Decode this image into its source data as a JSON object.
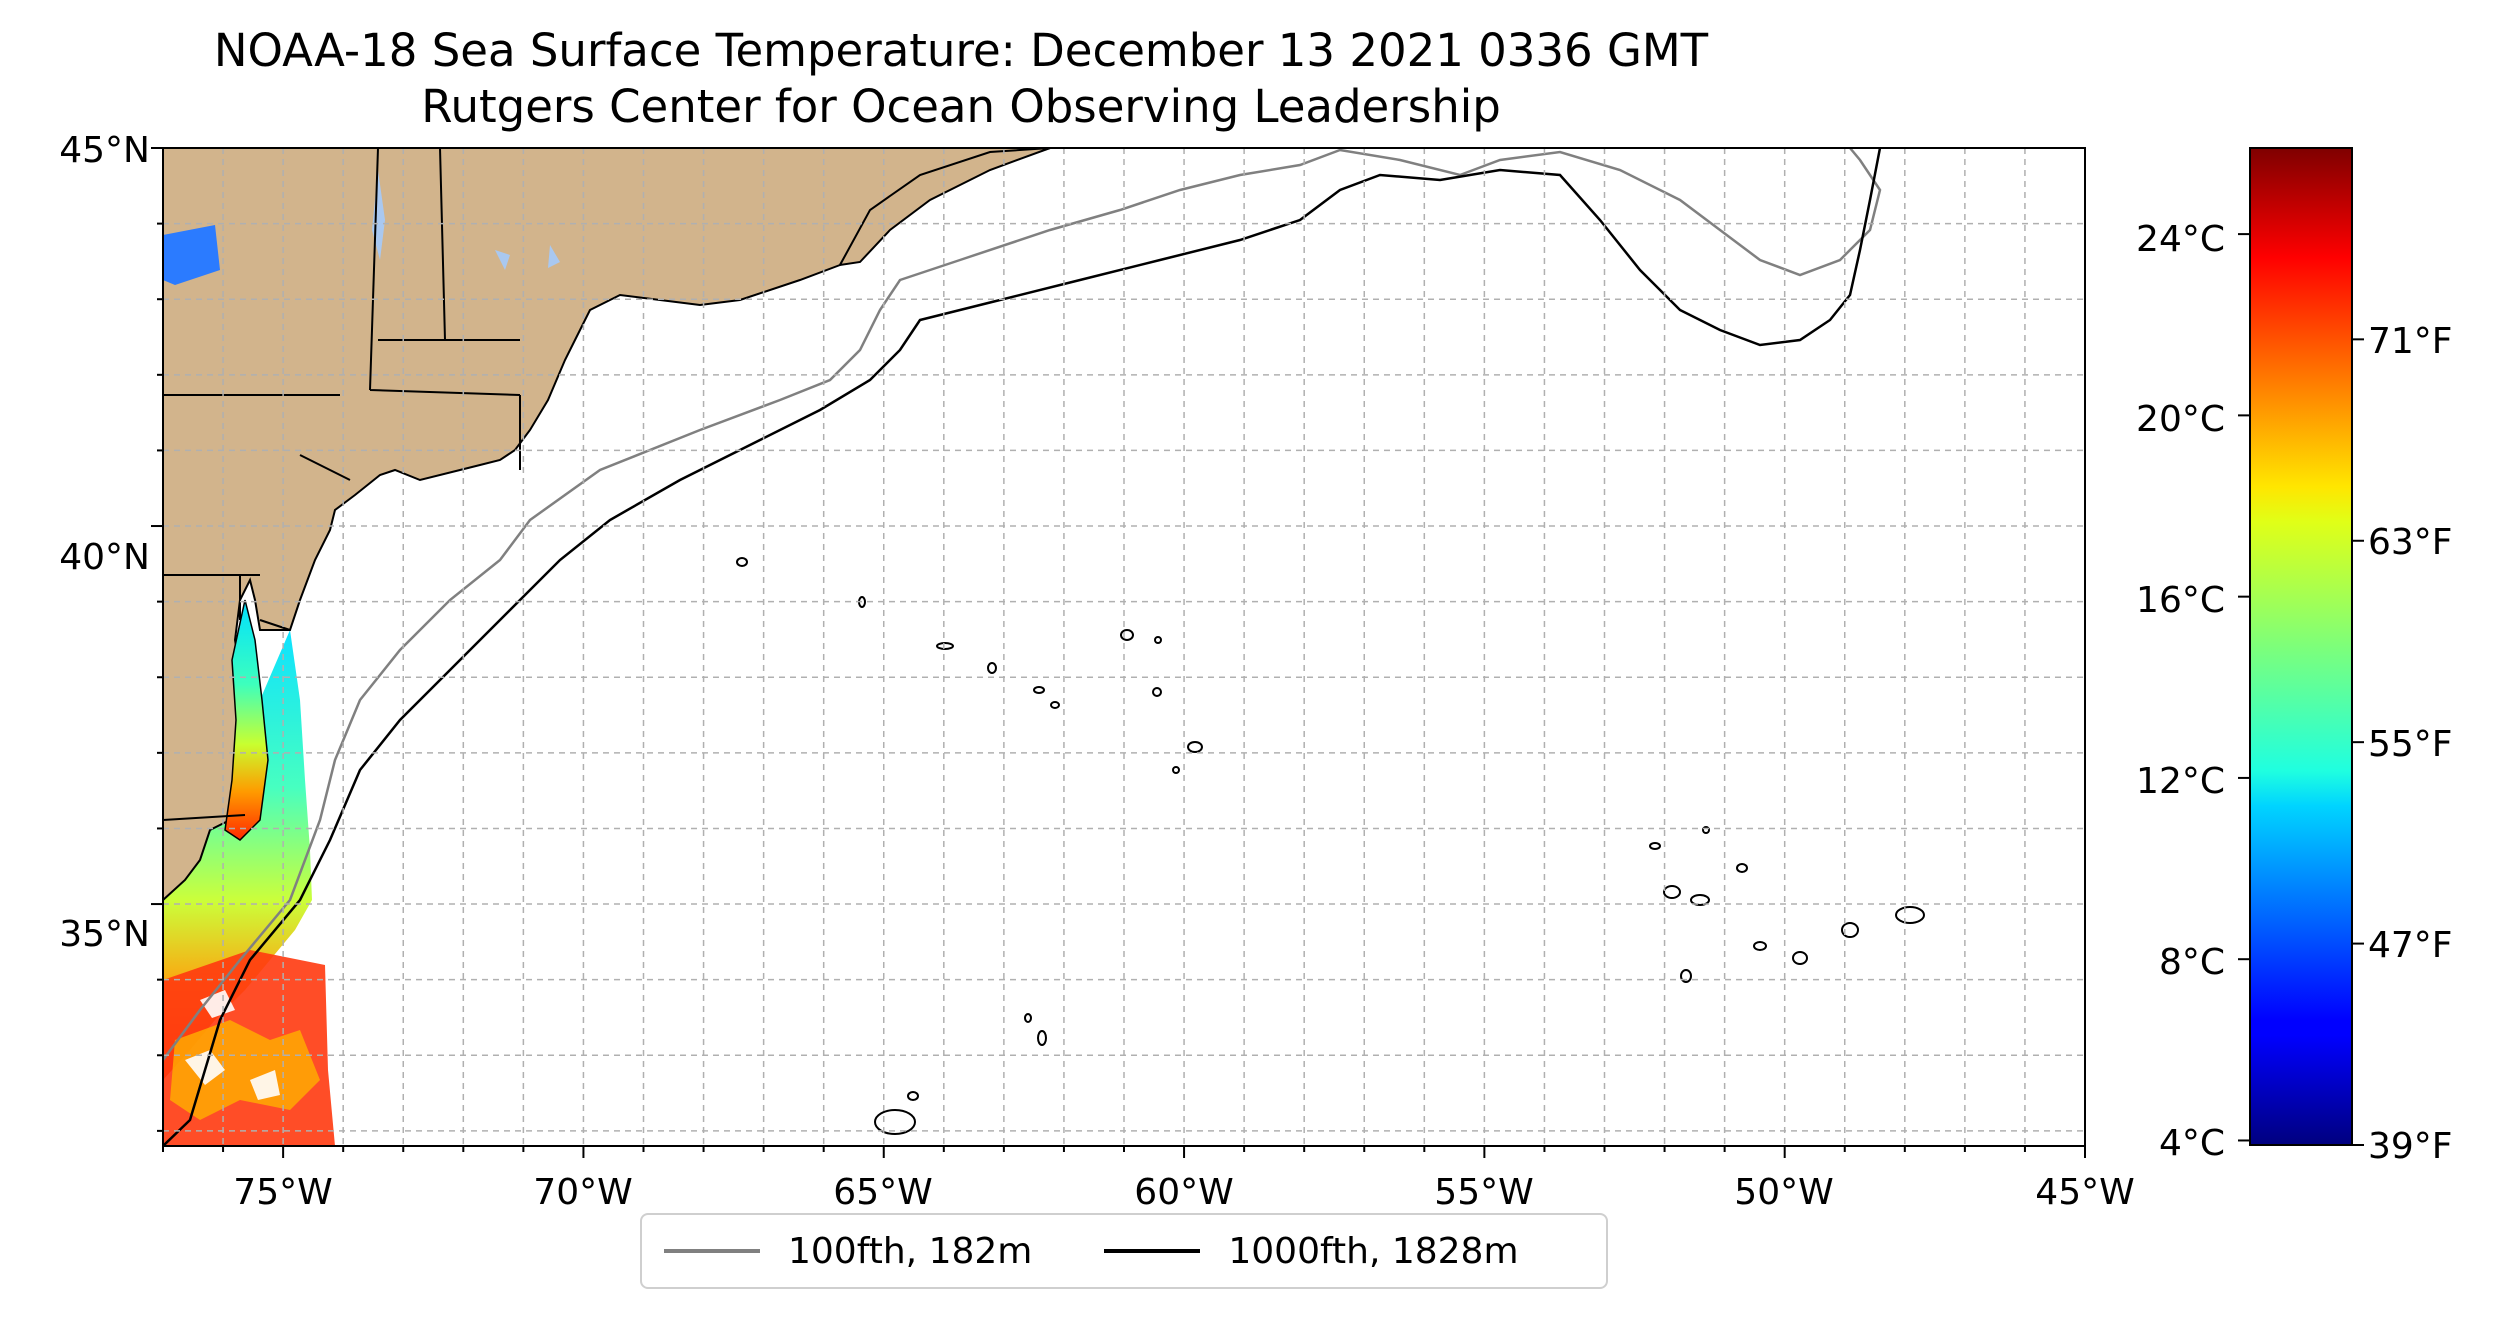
{
  "title": "NOAA-18 Sea Surface Temperature: December 13 2021 0336 GMT",
  "subtitle": "Rutgers Center for Ocean Observing Leadership",
  "map": {
    "lon_range": [
      -77,
      -45
    ],
    "lat_range": [
      31.8,
      45
    ],
    "lon_ticks": [
      -75,
      -70,
      -65,
      -60,
      -55,
      -50,
      -45
    ],
    "lon_tick_labels": [
      "75°W",
      "70°W",
      "65°W",
      "60°W",
      "55°W",
      "50°W",
      "45°W"
    ],
    "lat_ticks": [
      35,
      40,
      45
    ],
    "lat_tick_labels": [
      "35°N",
      "40°N",
      "45°N"
    ],
    "gridlines": true,
    "gridline_spacing_deg": 1,
    "land_color": "#d2b48c",
    "lake_color": "#a9c8f0"
  },
  "colorbar": {
    "colormap": "jet",
    "celsius_ticks": [
      "4°C",
      "8°C",
      "12°C",
      "16°C",
      "20°C",
      "24°C"
    ],
    "fahrenheit_ticks": [
      "39°F",
      "47°F",
      "55°F",
      "63°F",
      "71°F"
    ],
    "range_c": [
      3.9,
      25.9
    ],
    "range_f": [
      39,
      78.6
    ]
  },
  "legend": {
    "items": [
      {
        "label": "100fth, 182m",
        "color": "#808080"
      },
      {
        "label": "1000fth, 1828m",
        "color": "#000000"
      }
    ]
  }
}
